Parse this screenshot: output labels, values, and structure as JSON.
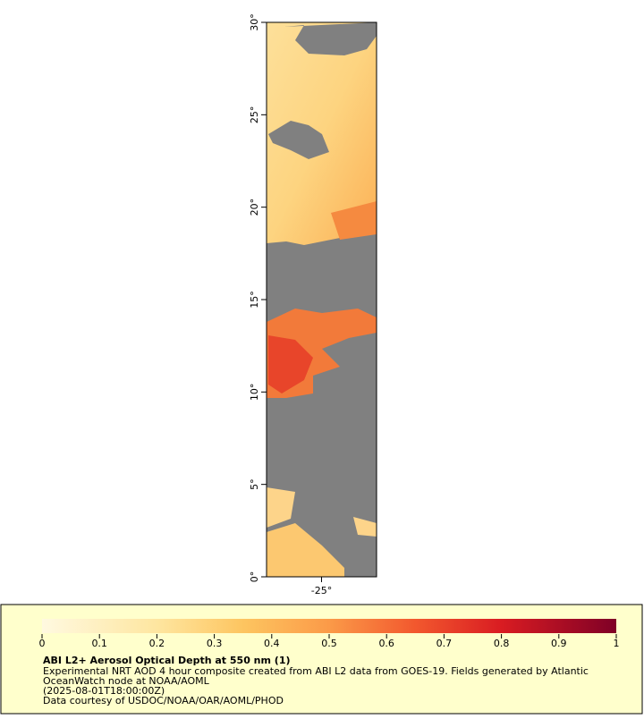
{
  "map": {
    "xlim": [
      -28,
      -22
    ],
    "xticks": [
      {
        "value": -25,
        "label": "-25°"
      }
    ],
    "ylim": [
      0,
      30
    ],
    "yticks": [
      {
        "value": 0,
        "label": "0°"
      },
      {
        "value": 5,
        "label": "5°"
      },
      {
        "value": 10,
        "label": "10°"
      },
      {
        "value": 15,
        "label": "15°"
      },
      {
        "value": 20,
        "label": "20°"
      },
      {
        "value": 25,
        "label": "25°"
      },
      {
        "value": 30,
        "label": "30°"
      }
    ]
  },
  "legend": {
    "colorbar_lim": [
      0,
      1
    ],
    "colorbar_ticks": [
      0,
      0.1,
      0.2,
      0.3,
      0.4,
      0.5,
      0.6,
      0.7,
      0.8,
      0.9,
      1
    ],
    "title": "ABI L2+ Aerosol Optical Depth at 550 nm (1)",
    "lines": [
      "Experimental NRT AOD 4 hour composite created from ABI L2 data from GOES-19. Fields generated by Atlantic",
      "OceanWatch node at NOAA/AOML",
      "(2025-08-01T18:00:00Z)",
      "Data courtesy of USDOC/NOAA/OAR/AOML/PHOD"
    ]
  }
}
